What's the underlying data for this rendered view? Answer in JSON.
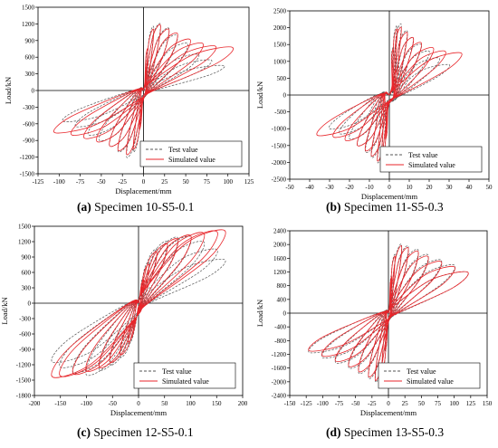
{
  "chart_data": [
    {
      "type": "line",
      "id": "a",
      "caption_letter": "(a)",
      "caption_text": "Specimen 10-S5-0.1",
      "xlabel": "Displacement/mm",
      "ylabel": "Load/kN",
      "xlim": [
        -125,
        125
      ],
      "ylim": [
        -1500,
        1500
      ],
      "xticks": [
        -125,
        -100,
        -75,
        -50,
        -25,
        0,
        25,
        50,
        75,
        100,
        125
      ],
      "yticks": [
        -1500,
        -1200,
        -900,
        -600,
        -300,
        0,
        300,
        600,
        900,
        1200,
        1500
      ],
      "legend_position": "bottom-right",
      "series": [
        {
          "name": "Test value",
          "style": "dashed",
          "color": "#555555",
          "peak_x": [
            5,
            12,
            20,
            30,
            40,
            52,
            65,
            80,
            95
          ],
          "peak_y_pos": [
            700,
            1150,
            1200,
            1120,
            1000,
            850,
            650,
            550,
            450
          ],
          "peak_y_neg": [
            -650,
            -1100,
            -1200,
            -1100,
            -1000,
            -900,
            -800,
            -650,
            -560
          ]
        },
        {
          "name": "Simulated value",
          "style": "solid",
          "color": "#e8262b",
          "peak_x": [
            5,
            12,
            20,
            30,
            40,
            55,
            70,
            85,
            105
          ],
          "peak_y_pos": [
            750,
            1100,
            1180,
            1100,
            1030,
            920,
            850,
            800,
            780
          ],
          "peak_y_neg": [
            -700,
            -1050,
            -1150,
            -1080,
            -1000,
            -920,
            -860,
            -800,
            -760
          ]
        }
      ]
    },
    {
      "type": "line",
      "id": "b",
      "caption_letter": "(b)",
      "caption_text": "Specimen 11-S5-0.3",
      "xlabel": "Displacement/mm",
      "ylabel": "Load/kN",
      "xlim": [
        -50,
        50
      ],
      "ylim": [
        -2500,
        2500
      ],
      "xticks": [
        -50,
        -40,
        -30,
        -20,
        -10,
        0,
        10,
        20,
        30,
        40,
        50
      ],
      "yticks": [
        -2500,
        -2000,
        -1500,
        -1000,
        -500,
        0,
        500,
        1000,
        1500,
        2000,
        2500
      ],
      "legend_position": "bottom-right",
      "series": [
        {
          "name": "Test value",
          "style": "dashed",
          "color": "#555555",
          "peak_x": [
            2,
            4,
            6,
            9,
            12,
            16,
            20,
            25,
            30
          ],
          "peak_y_pos": [
            1400,
            2050,
            2100,
            1900,
            1700,
            1500,
            1300,
            1100,
            900
          ],
          "peak_y_neg": [
            -1300,
            -1900,
            -2000,
            -1850,
            -1700,
            -1500,
            -1300,
            -1150,
            -1000
          ]
        },
        {
          "name": "Simulated value",
          "style": "solid",
          "color": "#e8262b",
          "peak_x": [
            2,
            4,
            6,
            9,
            12,
            16,
            22,
            28,
            36
          ],
          "peak_y_pos": [
            1350,
            1950,
            2000,
            1850,
            1700,
            1550,
            1400,
            1300,
            1250
          ],
          "peak_y_neg": [
            -1300,
            -1850,
            -1950,
            -1800,
            -1650,
            -1500,
            -1350,
            -1250,
            -1200
          ]
        }
      ]
    },
    {
      "type": "line",
      "id": "c",
      "caption_letter": "(c)",
      "caption_text": "Specimen 12-S5-0.1",
      "xlabel": "Displacement/mm",
      "ylabel": "Load/kN",
      "xlim": [
        -200,
        200
      ],
      "ylim": [
        -1800,
        1500
      ],
      "xticks": [
        -200,
        -150,
        -100,
        -50,
        0,
        50,
        100,
        150,
        200
      ],
      "yticks": [
        -1800,
        -1500,
        -1200,
        -900,
        -600,
        -300,
        0,
        300,
        600,
        900,
        1200,
        1500
      ],
      "legend_position": "bottom-right",
      "series": [
        {
          "name": "Test value",
          "style": "dashed",
          "color": "#555555",
          "peak_x": [
            10,
            20,
            35,
            55,
            75,
            100,
            125,
            150,
            165
          ],
          "peak_y_pos": [
            500,
            800,
            1050,
            1200,
            1280,
            1300,
            1200,
            1050,
            850
          ],
          "peak_y_neg": [
            -500,
            -800,
            -1050,
            -1200,
            -1300,
            -1400,
            -1350,
            -1250,
            -1150
          ]
        },
        {
          "name": "Simulated value",
          "style": "solid",
          "color": "#e8262b",
          "peak_x": [
            10,
            20,
            35,
            55,
            75,
            100,
            125,
            150,
            165
          ],
          "peak_y_pos": [
            450,
            750,
            1000,
            1150,
            1250,
            1320,
            1370,
            1400,
            1420
          ],
          "peak_y_neg": [
            -450,
            -750,
            -1000,
            -1150,
            -1250,
            -1320,
            -1380,
            -1420,
            -1440
          ]
        }
      ]
    },
    {
      "type": "line",
      "id": "d",
      "caption_letter": "(d)",
      "caption_text": "Specimen 13-S5-0.3",
      "xlabel": "Displacement/mm",
      "ylabel": "Load/kN",
      "xlim": [
        -150,
        150
      ],
      "ylim": [
        -2400,
        2400
      ],
      "xticks": [
        -150,
        -125,
        -100,
        -75,
        -50,
        -25,
        0,
        25,
        50,
        75,
        100,
        125,
        150
      ],
      "yticks": [
        -2400,
        -2000,
        -1600,
        -1200,
        -800,
        -400,
        0,
        400,
        800,
        1200,
        1600,
        2000,
        2400
      ],
      "legend_position": "bottom-right",
      "series": [
        {
          "name": "Test value",
          "style": "dashed",
          "color": "#555555",
          "peak_x": [
            5,
            10,
            20,
            30,
            45,
            60,
            80,
            100,
            120
          ],
          "peak_y_pos": [
            1100,
            1700,
            2000,
            1950,
            1850,
            1700,
            1550,
            1400,
            1200
          ],
          "peak_y_neg": [
            -1100,
            -1700,
            -2000,
            -1900,
            -1750,
            -1600,
            -1450,
            -1300,
            -1150
          ]
        },
        {
          "name": "Simulated value",
          "style": "solid",
          "color": "#e8262b",
          "peak_x": [
            5,
            10,
            20,
            30,
            45,
            60,
            80,
            100,
            120
          ],
          "peak_y_pos": [
            1050,
            1650,
            1950,
            1900,
            1800,
            1650,
            1500,
            1350,
            1200
          ],
          "peak_y_neg": [
            -1050,
            -1650,
            -1950,
            -1850,
            -1700,
            -1550,
            -1400,
            -1250,
            -1100
          ]
        }
      ]
    }
  ]
}
